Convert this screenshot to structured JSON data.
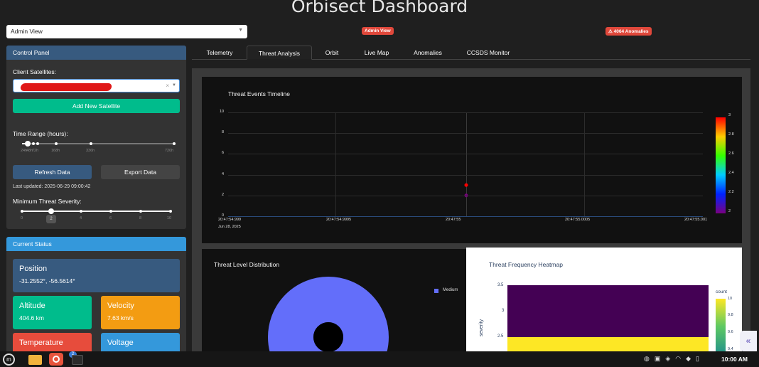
{
  "title": "Orbisect Dashboard",
  "view_select": {
    "value": "Admin View"
  },
  "badges": {
    "admin": "Admin View",
    "anomalies": "⚠ 4064 Anomalies"
  },
  "control": {
    "header": "Control Panel",
    "client_label": "Client Satellites:",
    "add_button": "Add New Satellite",
    "time_label": "Time Range (hours):",
    "time_ticks": [
      "24h",
      "48h",
      "72h",
      "168h",
      "336h",
      "720h"
    ],
    "refresh": "Refresh Data",
    "export": "Export Data",
    "last_updated": "Last updated: 2025-06-29 09:00:42",
    "severity_label": "Minimum Threat Severity:",
    "severity_ticks": [
      "0",
      "2",
      "4",
      "6",
      "8",
      "10"
    ],
    "severity_value": "2"
  },
  "status": {
    "header": "Current Status",
    "position_title": "Position",
    "position_value": "-31.2552°, -56.5614°",
    "altitude_title": "Altitude",
    "altitude_value": "404.6 km",
    "velocity_title": "Velocity",
    "velocity_value": "7.63 km/s",
    "temperature_title": "Temperature",
    "voltage_title": "Voltage"
  },
  "tabs": [
    "Telemetry",
    "Threat Analysis",
    "Orbit",
    "Live Map",
    "Anomalies",
    "CCSDS Monitor"
  ],
  "colors": {
    "primary": "#375a7f",
    "success": "#00bc8c",
    "warning": "#f39c12",
    "danger": "#e74c3c",
    "info": "#3498db"
  },
  "chart_data": [
    {
      "type": "scatter",
      "title": "Threat Events Timeline",
      "x_ticks": [
        "20:47:54.999",
        "20:47:54.9995",
        "20:47:55",
        "20:47:55.0005",
        "20:47:55.001"
      ],
      "x_subtitle": "Jun 28, 2025",
      "y_ticks": [
        "0",
        "2",
        "4",
        "6",
        "8",
        "10"
      ],
      "ylim": [
        0,
        10
      ],
      "points": [
        {
          "x": "20:47:55",
          "y": 3,
          "severity": 3
        },
        {
          "x": "20:47:55",
          "y": 2,
          "severity": 2
        }
      ],
      "colorbar": {
        "ticks": [
          "2",
          "2.2",
          "2.4",
          "2.6",
          "2.8",
          "3"
        ]
      }
    },
    {
      "type": "pie",
      "title": "Threat Level Distribution",
      "slices": [
        {
          "label": "Medium",
          "value": 100
        }
      ]
    },
    {
      "type": "heatmap",
      "title": "Threat Frequency Heatmap",
      "ylabel": "severity",
      "y_ticks": [
        "2.5",
        "3",
        "3.5"
      ],
      "colorbar": {
        "title": "count",
        "ticks": [
          "9.4",
          "9.6",
          "9.8",
          "10"
        ]
      }
    }
  ],
  "taskbar": {
    "badge": "2",
    "clock": "10:00 AM"
  }
}
